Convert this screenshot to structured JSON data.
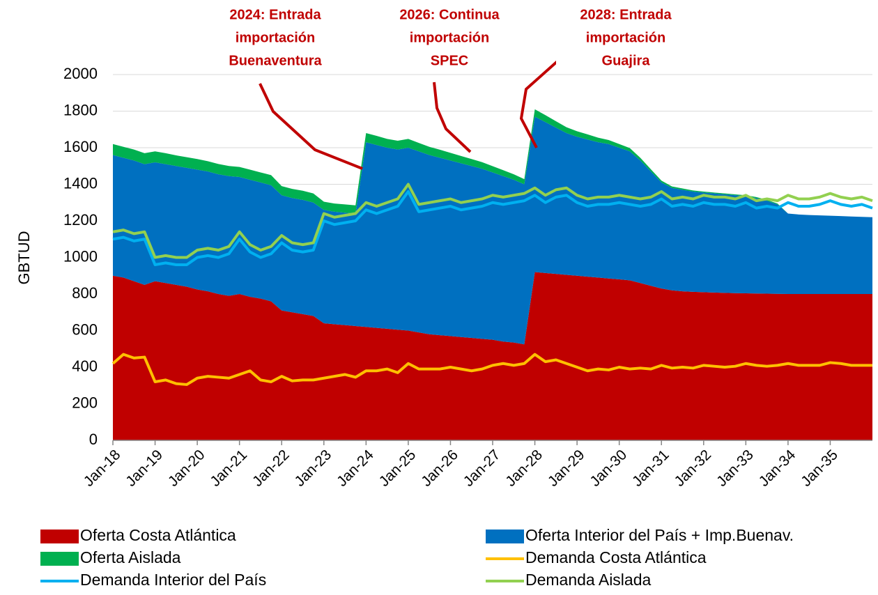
{
  "chart_data": {
    "type": "area",
    "ylabel": "GBTUD",
    "ylim": [
      0,
      2000
    ],
    "yticks": [
      0,
      200,
      400,
      600,
      800,
      1000,
      1200,
      1400,
      1600,
      1800,
      2000
    ],
    "grid": true,
    "xlim": [
      2018,
      2036
    ],
    "xticks": [
      {
        "value": 2018,
        "label": "Jan-18"
      },
      {
        "value": 2019,
        "label": "Jan-19"
      },
      {
        "value": 2020,
        "label": "Jan-20"
      },
      {
        "value": 2021,
        "label": "Jan-21"
      },
      {
        "value": 2022,
        "label": "Jan-22"
      },
      {
        "value": 2023,
        "label": "Jan-23"
      },
      {
        "value": 2024,
        "label": "Jan-24"
      },
      {
        "value": 2025,
        "label": "Jan-25"
      },
      {
        "value": 2026,
        "label": "Jan-26"
      },
      {
        "value": 2027,
        "label": "Jan-27"
      },
      {
        "value": 2028,
        "label": "Jan-28"
      },
      {
        "value": 2029,
        "label": "Jan-29"
      },
      {
        "value": 2030,
        "label": "Jan-30"
      },
      {
        "value": 2031,
        "label": "Jan-31"
      },
      {
        "value": 2032,
        "label": "Jan-32"
      },
      {
        "value": 2033,
        "label": "Jan-33"
      },
      {
        "value": 2034,
        "label": "Jan-34"
      },
      {
        "value": 2035,
        "label": "Jan-35"
      }
    ],
    "x": [
      2018,
      2018.25,
      2018.5,
      2018.75,
      2019,
      2019.25,
      2019.5,
      2019.75,
      2020,
      2020.25,
      2020.5,
      2020.75,
      2021,
      2021.25,
      2021.5,
      2021.75,
      2022,
      2022.25,
      2022.5,
      2022.75,
      2023,
      2023.25,
      2023.5,
      2023.75,
      2024,
      2024.25,
      2024.5,
      2024.75,
      2025,
      2025.25,
      2025.5,
      2025.75,
      2026,
      2026.25,
      2026.5,
      2026.75,
      2027,
      2027.25,
      2027.5,
      2027.75,
      2028,
      2028.25,
      2028.5,
      2028.75,
      2029,
      2029.25,
      2029.5,
      2029.75,
      2030,
      2030.25,
      2030.5,
      2030.75,
      2031,
      2031.25,
      2031.5,
      2031.75,
      2032,
      2032.25,
      2032.5,
      2032.75,
      2033,
      2033.25,
      2033.5,
      2033.75,
      2034,
      2034.25,
      2034.5,
      2034.75,
      2035,
      2035.25,
      2035.5,
      2035.75,
      2036
    ],
    "series": [
      {
        "name": "Oferta Costa Atlántica",
        "color": "#c00000",
        "values": [
          900,
          890,
          870,
          850,
          870,
          860,
          850,
          840,
          825,
          815,
          800,
          790,
          800,
          785,
          775,
          760,
          710,
          700,
          690,
          680,
          640,
          635,
          630,
          625,
          620,
          615,
          610,
          605,
          600,
          590,
          580,
          575,
          570,
          565,
          560,
          555,
          550,
          540,
          535,
          525,
          920,
          915,
          910,
          905,
          900,
          895,
          890,
          885,
          880,
          875,
          860,
          845,
          830,
          820,
          815,
          812,
          810,
          808,
          806,
          805,
          804,
          803,
          802,
          801,
          800,
          800,
          800,
          800,
          800,
          800,
          800,
          800,
          800
        ]
      },
      {
        "name": "Oferta Interior del País + Imp.Buenav.",
        "color": "#0070c0",
        "values": [
          660,
          655,
          660,
          660,
          650,
          650,
          650,
          650,
          655,
          655,
          655,
          655,
          640,
          640,
          635,
          635,
          630,
          625,
          625,
          620,
          620,
          615,
          615,
          615,
          1010,
          1000,
          990,
          985,
          1000,
          990,
          980,
          970,
          960,
          950,
          940,
          930,
          915,
          905,
          890,
          875,
          850,
          825,
          800,
          775,
          760,
          750,
          740,
          735,
          720,
          705,
          670,
          625,
          580,
          560,
          555,
          548,
          545,
          542,
          539,
          535,
          531,
          522,
          508,
          489,
          440,
          435,
          432,
          430,
          428,
          426,
          424,
          422,
          420
        ]
      },
      {
        "name": "Oferta Aislada",
        "color": "#00b050",
        "values": [
          60,
          60,
          60,
          60,
          60,
          60,
          58,
          58,
          58,
          56,
          56,
          55,
          55,
          55,
          55,
          55,
          50,
          50,
          50,
          50,
          45,
          45,
          45,
          45,
          50,
          50,
          48,
          48,
          48,
          46,
          45,
          44,
          42,
          40,
          38,
          36,
          34,
          32,
          30,
          28,
          40,
          38,
          35,
          32,
          30,
          28,
          25,
          22,
          20,
          18,
          15,
          12,
          10,
          8,
          7,
          6,
          5,
          5,
          5,
          5,
          5,
          5,
          5,
          5,
          0,
          0,
          0,
          0,
          0,
          0,
          0,
          0,
          0
        ]
      },
      {
        "name": "Demanda Costa Atlántica",
        "color": "#ffc000",
        "type": "line",
        "values": [
          420,
          470,
          450,
          455,
          320,
          330,
          310,
          305,
          340,
          350,
          345,
          340,
          360,
          380,
          330,
          320,
          350,
          325,
          330,
          330,
          340,
          350,
          360,
          345,
          380,
          380,
          390,
          370,
          420,
          390,
          390,
          390,
          400,
          390,
          380,
          390,
          410,
          420,
          410,
          420,
          470,
          430,
          440,
          420,
          400,
          380,
          390,
          385,
          400,
          390,
          395,
          390,
          410,
          395,
          400,
          395,
          410,
          405,
          400,
          405,
          420,
          410,
          405,
          410,
          420,
          410,
          410,
          410,
          425,
          420,
          410,
          410,
          410
        ]
      },
      {
        "name": "Demanda Interior del País",
        "color": "#00b0f0",
        "type": "line",
        "values": [
          1100,
          1110,
          1090,
          1100,
          960,
          970,
          960,
          960,
          1000,
          1010,
          1000,
          1020,
          1100,
          1030,
          1000,
          1020,
          1080,
          1040,
          1030,
          1040,
          1200,
          1180,
          1190,
          1200,
          1260,
          1240,
          1260,
          1280,
          1360,
          1250,
          1260,
          1270,
          1280,
          1260,
          1270,
          1280,
          1300,
          1290,
          1300,
          1310,
          1340,
          1300,
          1330,
          1340,
          1300,
          1280,
          1290,
          1290,
          1300,
          1290,
          1280,
          1290,
          1320,
          1280,
          1290,
          1280,
          1300,
          1290,
          1290,
          1280,
          1300,
          1270,
          1280,
          1270,
          1300,
          1280,
          1280,
          1290,
          1310,
          1290,
          1280,
          1290,
          1270
        ]
      },
      {
        "name": "Demanda Aislada",
        "color": "#92d050",
        "type": "line",
        "values": [
          1140,
          1150,
          1130,
          1140,
          1000,
          1010,
          1000,
          1000,
          1040,
          1050,
          1040,
          1060,
          1140,
          1070,
          1040,
          1060,
          1120,
          1080,
          1070,
          1080,
          1240,
          1220,
          1230,
          1240,
          1300,
          1280,
          1300,
          1320,
          1400,
          1290,
          1300,
          1310,
          1320,
          1300,
          1310,
          1320,
          1340,
          1330,
          1340,
          1350,
          1380,
          1340,
          1370,
          1380,
          1340,
          1320,
          1330,
          1330,
          1340,
          1330,
          1320,
          1330,
          1360,
          1320,
          1330,
          1320,
          1340,
          1330,
          1330,
          1320,
          1340,
          1310,
          1320,
          1310,
          1340,
          1320,
          1320,
          1330,
          1350,
          1330,
          1320,
          1330,
          1310
        ]
      }
    ],
    "annotations": [
      {
        "lines": [
          "2024: Entrada",
          "importación",
          "Buenaventura"
        ]
      },
      {
        "lines": [
          "2026: Continua",
          "importación",
          "SPEC"
        ]
      },
      {
        "lines": [
          "2028: Entrada",
          "importación",
          "Guajira"
        ]
      }
    ]
  }
}
